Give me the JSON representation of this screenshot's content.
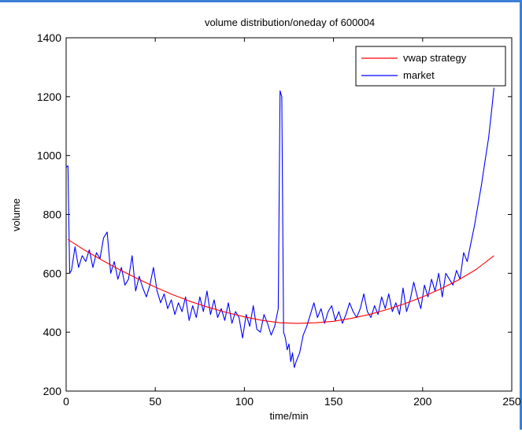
{
  "chart_data": {
    "type": "line",
    "title": "volume distribution/oneday of 600004",
    "xlabel": "time/min",
    "ylabel": "volume",
    "xlim": [
      0,
      250
    ],
    "ylim": [
      200,
      1400
    ],
    "xticks": [
      0,
      50,
      100,
      150,
      200,
      250
    ],
    "yticks": [
      200,
      400,
      600,
      800,
      1000,
      1200,
      1400
    ],
    "grid": false,
    "legend_position": "top-right",
    "series": [
      {
        "name": "vwap strategy",
        "color": "#ff0000",
        "x": [
          1,
          10,
          20,
          30,
          40,
          50,
          60,
          70,
          80,
          90,
          100,
          110,
          120,
          130,
          140,
          150,
          160,
          170,
          180,
          190,
          200,
          210,
          220,
          230,
          240
        ],
        "y": [
          715,
          680,
          645,
          612,
          582,
          553,
          527,
          504,
          484,
          467,
          452,
          440,
          432,
          430,
          432,
          437,
          447,
          460,
          477,
          497,
          520,
          547,
          577,
          613,
          660
        ]
      },
      {
        "name": "market",
        "color": "#0000ff",
        "x": [
          0,
          1,
          2,
          3,
          5,
          7,
          9,
          11,
          13,
          15,
          17,
          19,
          21,
          23,
          25,
          27,
          29,
          31,
          33,
          35,
          37,
          39,
          41,
          43,
          45,
          47,
          49,
          51,
          53,
          55,
          57,
          59,
          61,
          63,
          65,
          67,
          69,
          71,
          73,
          75,
          77,
          79,
          81,
          83,
          85,
          87,
          89,
          91,
          93,
          95,
          97,
          99,
          101,
          103,
          105,
          107,
          109,
          111,
          113,
          115,
          117,
          119,
          120,
          121,
          122,
          123,
          124,
          125,
          126,
          127,
          128,
          129,
          131,
          133,
          135,
          137,
          139,
          141,
          143,
          145,
          147,
          149,
          151,
          153,
          155,
          157,
          159,
          161,
          163,
          165,
          167,
          169,
          171,
          173,
          175,
          177,
          179,
          181,
          183,
          185,
          187,
          189,
          191,
          193,
          195,
          197,
          199,
          201,
          203,
          205,
          207,
          209,
          211,
          213,
          215,
          217,
          219,
          221,
          223,
          225,
          227,
          229,
          231,
          233,
          235,
          237,
          239,
          240
        ],
        "y": [
          960,
          965,
          600,
          610,
          690,
          620,
          660,
          640,
          680,
          620,
          670,
          650,
          720,
          740,
          600,
          640,
          580,
          620,
          560,
          580,
          660,
          540,
          590,
          550,
          520,
          560,
          620,
          540,
          500,
          530,
          480,
          510,
          460,
          500,
          470,
          520,
          440,
          490,
          450,
          520,
          470,
          540,
          460,
          510,
          450,
          480,
          440,
          500,
          430,
          470,
          450,
          380,
          460,
          420,
          490,
          410,
          400,
          460,
          430,
          390,
          420,
          480,
          1220,
          1200,
          400,
          380,
          340,
          360,
          300,
          330,
          280,
          300,
          330,
          390,
          420,
          460,
          500,
          450,
          480,
          430,
          470,
          490,
          440,
          470,
          430,
          460,
          500,
          470,
          450,
          480,
          530,
          470,
          450,
          490,
          460,
          520,
          480,
          530,
          470,
          500,
          460,
          550,
          470,
          510,
          570,
          520,
          480,
          560,
          520,
          580,
          540,
          600,
          520,
          600,
          580,
          560,
          610,
          580,
          670,
          640,
          700,
          760,
          830,
          900,
          980,
          1060,
          1170,
          1230
        ]
      }
    ]
  }
}
